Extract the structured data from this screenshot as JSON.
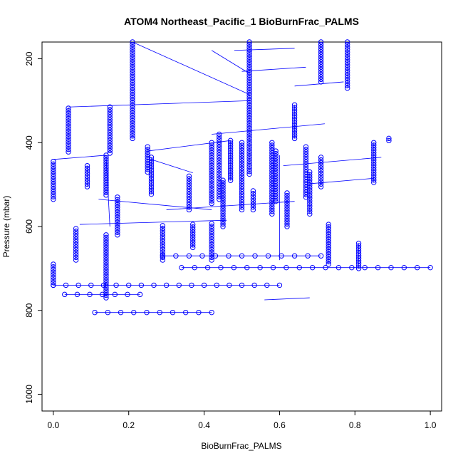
{
  "chart_data": {
    "type": "scatter",
    "title": "ATOM4 Northeast_Pacific_1 BioBurnFrac_PALMS",
    "xlabel": "BioBurnFrac_PALMS",
    "ylabel": "Pressure (mbar)",
    "xlim": [
      -0.03,
      1.03
    ],
    "ylim": [
      1040,
      160
    ],
    "y_reversed": true,
    "x_ticks": [
      0.0,
      0.2,
      0.4,
      0.6,
      0.8,
      1.0
    ],
    "x_tick_labels": [
      "0.0",
      "0.2",
      "0.4",
      "0.6",
      "0.8",
      "1.0"
    ],
    "y_ticks": [
      200,
      400,
      600,
      800,
      1000
    ],
    "y_tick_labels": [
      "200",
      "400",
      "600",
      "800",
      "1000"
    ],
    "grid": false,
    "marker": "open-circle",
    "color": "#0000ff",
    "connect_points": true,
    "vertical_runs": [
      {
        "x": 0.0,
        "p_top": 445,
        "p_bottom": 535
      },
      {
        "x": 0.0,
        "p_top": 690,
        "p_bottom": 740
      },
      {
        "x": 0.04,
        "p_top": 318,
        "p_bottom": 422
      },
      {
        "x": 0.06,
        "p_top": 605,
        "p_bottom": 680
      },
      {
        "x": 0.09,
        "p_top": 455,
        "p_bottom": 505
      },
      {
        "x": 0.14,
        "p_top": 430,
        "p_bottom": 525
      },
      {
        "x": 0.14,
        "p_top": 620,
        "p_bottom": 770
      },
      {
        "x": 0.15,
        "p_top": 315,
        "p_bottom": 425
      },
      {
        "x": 0.17,
        "p_top": 530,
        "p_bottom": 620
      },
      {
        "x": 0.21,
        "p_top": 160,
        "p_bottom": 390
      },
      {
        "x": 0.25,
        "p_top": 410,
        "p_bottom": 470
      },
      {
        "x": 0.26,
        "p_top": 435,
        "p_bottom": 523
      },
      {
        "x": 0.29,
        "p_top": 598,
        "p_bottom": 680
      },
      {
        "x": 0.36,
        "p_top": 480,
        "p_bottom": 560
      },
      {
        "x": 0.37,
        "p_top": 595,
        "p_bottom": 650
      },
      {
        "x": 0.42,
        "p_top": 400,
        "p_bottom": 545
      },
      {
        "x": 0.42,
        "p_top": 593,
        "p_bottom": 680
      },
      {
        "x": 0.44,
        "p_top": 380,
        "p_bottom": 535
      },
      {
        "x": 0.45,
        "p_top": 490,
        "p_bottom": 600
      },
      {
        "x": 0.47,
        "p_top": 395,
        "p_bottom": 490
      },
      {
        "x": 0.5,
        "p_top": 400,
        "p_bottom": 560
      },
      {
        "x": 0.52,
        "p_top": 160,
        "p_bottom": 475
      },
      {
        "x": 0.53,
        "p_top": 515,
        "p_bottom": 560
      },
      {
        "x": 0.58,
        "p_top": 400,
        "p_bottom": 570
      },
      {
        "x": 0.59,
        "p_top": 420,
        "p_bottom": 540
      },
      {
        "x": 0.62,
        "p_top": 520,
        "p_bottom": 600
      },
      {
        "x": 0.64,
        "p_top": 310,
        "p_bottom": 390
      },
      {
        "x": 0.67,
        "p_top": 410,
        "p_bottom": 530
      },
      {
        "x": 0.68,
        "p_top": 470,
        "p_bottom": 570
      },
      {
        "x": 0.71,
        "p_top": 160,
        "p_bottom": 255
      },
      {
        "x": 0.71,
        "p_top": 435,
        "p_bottom": 505
      },
      {
        "x": 0.73,
        "p_top": 595,
        "p_bottom": 690
      },
      {
        "x": 0.78,
        "p_top": 160,
        "p_bottom": 270
      },
      {
        "x": 0.81,
        "p_top": 640,
        "p_bottom": 700
      },
      {
        "x": 0.85,
        "p_top": 400,
        "p_bottom": 495
      },
      {
        "x": 0.89,
        "p_top": 390,
        "p_bottom": 395
      }
    ],
    "horizontal_runs": [
      {
        "p": 670,
        "x_start": 0.29,
        "x_end": 0.71
      },
      {
        "p": 698,
        "x_start": 0.34,
        "x_end": 1.0
      },
      {
        "p": 740,
        "x_start": 0.0,
        "x_end": 0.6
      },
      {
        "p": 762,
        "x_start": 0.03,
        "x_end": 0.23
      },
      {
        "p": 805,
        "x_start": 0.11,
        "x_end": 0.42
      }
    ],
    "connecting_segments": [
      {
        "x1": 0.0,
        "p1": 440,
        "x2": 0.14,
        "p2": 430
      },
      {
        "x1": 0.04,
        "p1": 315,
        "x2": 0.52,
        "p2": 300
      },
      {
        "x1": 0.12,
        "p1": 535,
        "x2": 0.42,
        "p2": 560
      },
      {
        "x1": 0.21,
        "p1": 160,
        "x2": 0.52,
        "p2": 285
      },
      {
        "x1": 0.25,
        "p1": 420,
        "x2": 0.47,
        "p2": 395
      },
      {
        "x1": 0.26,
        "p1": 440,
        "x2": 0.37,
        "p2": 472
      },
      {
        "x1": 0.07,
        "p1": 595,
        "x2": 0.46,
        "p2": 585
      },
      {
        "x1": 0.3,
        "p1": 560,
        "x2": 0.64,
        "p2": 540
      },
      {
        "x1": 0.42,
        "p1": 380,
        "x2": 0.72,
        "p2": 355
      },
      {
        "x1": 0.5,
        "p1": 230,
        "x2": 0.67,
        "p2": 220
      },
      {
        "x1": 0.48,
        "p1": 180,
        "x2": 0.64,
        "p2": 175
      },
      {
        "x1": 0.64,
        "p1": 265,
        "x2": 0.77,
        "p2": 255
      },
      {
        "x1": 0.61,
        "p1": 455,
        "x2": 0.87,
        "p2": 435
      },
      {
        "x1": 0.68,
        "p1": 498,
        "x2": 0.85,
        "p2": 485
      },
      {
        "x1": 0.56,
        "p1": 775,
        "x2": 0.68,
        "p2": 770
      },
      {
        "x1": 0.6,
        "p1": 430,
        "x2": 0.6,
        "p2": 680
      },
      {
        "x1": 0.14,
        "p1": 430,
        "x2": 0.15,
        "p2": 600
      },
      {
        "x1": 0.42,
        "p1": 180,
        "x2": 0.52,
        "p2": 235
      }
    ]
  }
}
